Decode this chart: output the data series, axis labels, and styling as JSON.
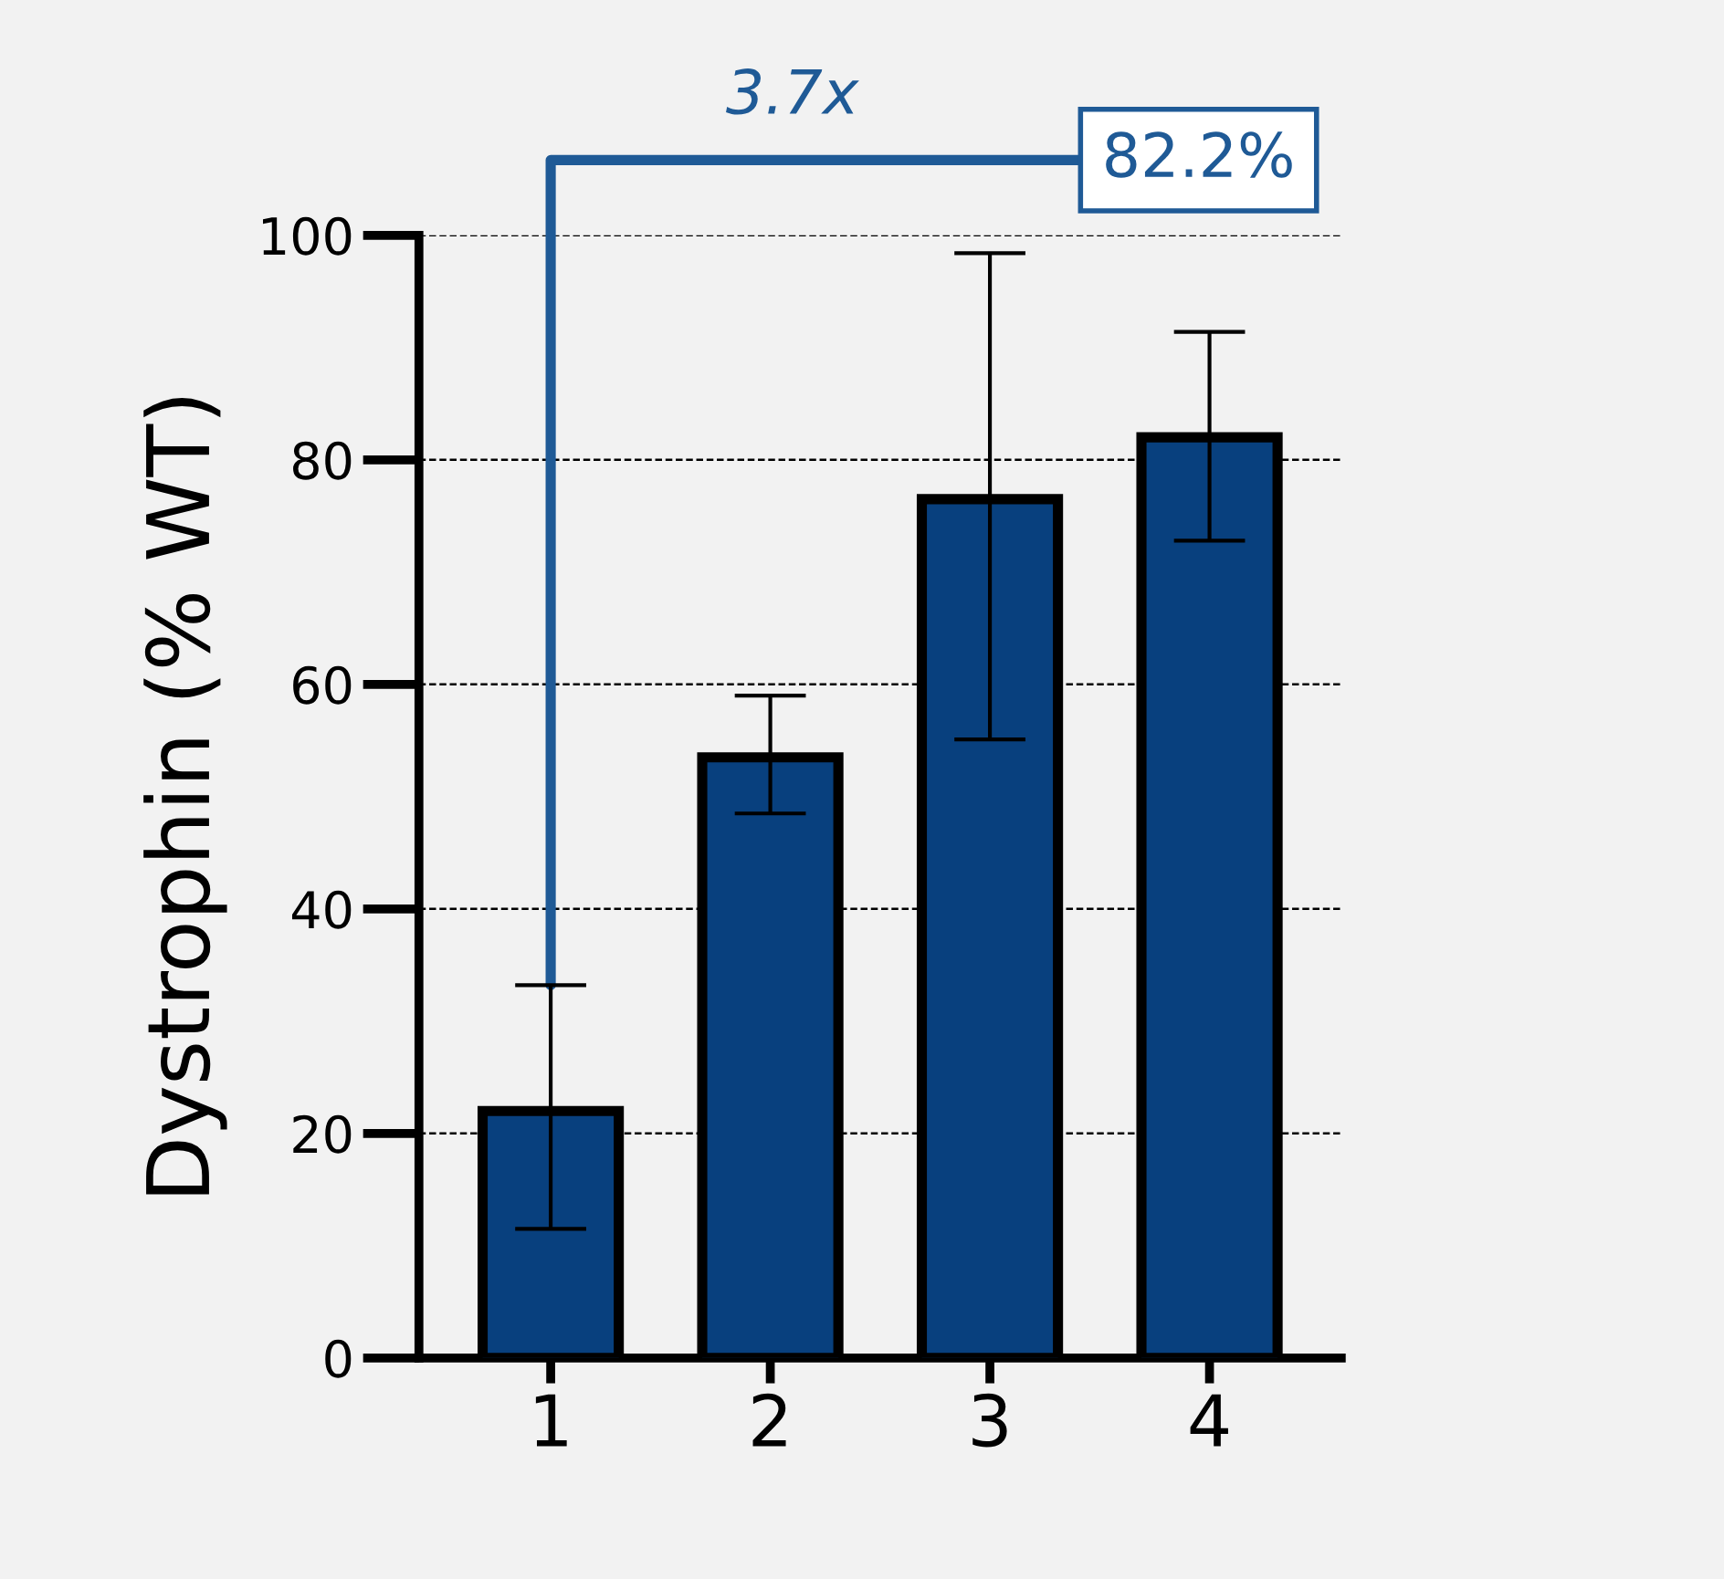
{
  "chart_data": {
    "type": "bar",
    "ylabel": "Dystrophin (% WT)",
    "categories": [
      "1",
      "2",
      "3",
      "4"
    ],
    "values": [
      22,
      53.5,
      76.5,
      82
    ],
    "errors": [
      [
        11.5,
        33.2
      ],
      [
        48.5,
        59
      ],
      [
        55.1,
        98.4
      ],
      [
        72.8,
        91.4
      ]
    ],
    "color": "#08407e",
    "ylim": [
      0,
      100
    ],
    "yticks": [
      0,
      20,
      40,
      60,
      80,
      100
    ],
    "grid": "y",
    "annotations": [
      "3.7x",
      "82.2%"
    ]
  }
}
